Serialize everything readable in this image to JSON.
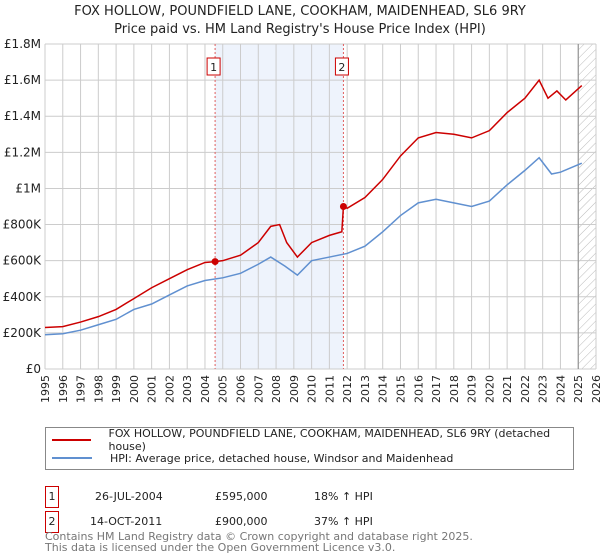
{
  "title": "FOX HOLLOW, POUNDFIELD LANE, COOKHAM, MAIDENHEAD, SL6 9RY",
  "subtitle": "Price paid vs. HM Land Registry's House Price Index (HPI)",
  "chart_data": {
    "type": "line",
    "title": "FOX HOLLOW, POUNDFIELD LANE, COOKHAM, MAIDENHEAD, SL6 9RY",
    "xlim": [
      1995,
      2026
    ],
    "ylim": [
      0,
      1800000
    ],
    "xticks": [
      1995,
      1996,
      1997,
      1998,
      1999,
      2000,
      2001,
      2002,
      2003,
      2004,
      2005,
      2006,
      2007,
      2008,
      2009,
      2010,
      2011,
      2012,
      2013,
      2014,
      2015,
      2016,
      2017,
      2018,
      2019,
      2020,
      2021,
      2022,
      2023,
      2024,
      2025,
      2026
    ],
    "yticks": [
      {
        "v": 0,
        "label": "£0"
      },
      {
        "v": 200000,
        "label": "£200K"
      },
      {
        "v": 400000,
        "label": "£400K"
      },
      {
        "v": 600000,
        "label": "£600K"
      },
      {
        "v": 800000,
        "label": "£800K"
      },
      {
        "v": 1000000,
        "label": "£1M"
      },
      {
        "v": 1200000,
        "label": "£1.2M"
      },
      {
        "v": 1400000,
        "label": "£1.4M"
      },
      {
        "v": 1600000,
        "label": "£1.6M"
      },
      {
        "v": 1800000,
        "label": "£1.8M"
      }
    ],
    "grid": true,
    "shaded_range": [
      2004.57,
      2011.79
    ],
    "forecast_from": 2025.0,
    "series": [
      {
        "name": "FOX HOLLOW, POUNDFIELD LANE, COOKHAM, MAIDENHEAD, SL6 9RY (detached house)",
        "color": "#cc0000",
        "x": [
          1995,
          1996,
          1997,
          1998,
          1999,
          2000,
          2001,
          2002,
          2003,
          2004,
          2004.57,
          2005,
          2006,
          2007,
          2007.7,
          2008.2,
          2008.6,
          2009.2,
          2010,
          2011,
          2011.7,
          2011.79,
          2012,
          2013,
          2014,
          2015,
          2016,
          2017,
          2018,
          2019,
          2020,
          2021,
          2022,
          2022.8,
          2023.3,
          2023.8,
          2024.3,
          2025.2
        ],
        "y": [
          230000,
          235000,
          260000,
          290000,
          330000,
          390000,
          450000,
          500000,
          550000,
          590000,
          595000,
          600000,
          630000,
          700000,
          790000,
          800000,
          700000,
          620000,
          700000,
          740000,
          760000,
          900000,
          890000,
          950000,
          1050000,
          1180000,
          1280000,
          1310000,
          1300000,
          1280000,
          1320000,
          1420000,
          1500000,
          1600000,
          1500000,
          1540000,
          1490000,
          1570000
        ]
      },
      {
        "name": "HPI: Average price, detached house, Windsor and Maidenhead",
        "color": "#6090d0",
        "x": [
          1995,
          1996,
          1997,
          1998,
          1999,
          2000,
          2001,
          2002,
          2003,
          2004,
          2005,
          2006,
          2007,
          2007.7,
          2008.5,
          2009.2,
          2010,
          2011,
          2012,
          2013,
          2014,
          2015,
          2016,
          2017,
          2018,
          2019,
          2020,
          2021,
          2022,
          2022.8,
          2023.5,
          2024,
          2025.2
        ],
        "y": [
          190000,
          195000,
          215000,
          245000,
          275000,
          330000,
          360000,
          410000,
          460000,
          490000,
          505000,
          530000,
          580000,
          620000,
          570000,
          520000,
          600000,
          620000,
          640000,
          680000,
          760000,
          850000,
          920000,
          940000,
          920000,
          900000,
          930000,
          1020000,
          1100000,
          1170000,
          1080000,
          1090000,
          1140000
        ]
      }
    ],
    "markers": [
      {
        "label": "1",
        "x": 2004.57,
        "y": 595000
      },
      {
        "label": "2",
        "x": 2011.79,
        "y": 900000
      }
    ]
  },
  "legend": [
    "FOX HOLLOW, POUNDFIELD LANE, COOKHAM, MAIDENHEAD, SL6 9RY (detached house)",
    "HPI: Average price, detached house, Windsor and Maidenhead"
  ],
  "transactions": [
    {
      "num": "1",
      "date": "26-JUL-2004",
      "price": "£595,000",
      "hpi": "18% ↑ HPI"
    },
    {
      "num": "2",
      "date": "14-OCT-2011",
      "price": "£900,000",
      "hpi": "37% ↑ HPI"
    }
  ],
  "footer": [
    "Contains HM Land Registry data © Crown copyright and database right 2025.",
    "This data is licensed under the Open Government Licence v3.0."
  ]
}
